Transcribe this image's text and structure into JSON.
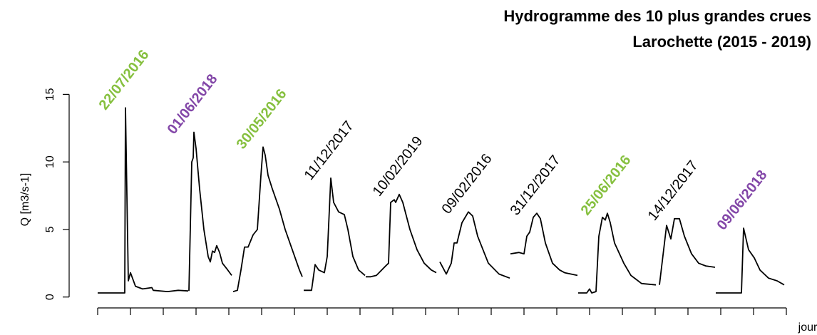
{
  "chart_data": {
    "type": "line",
    "title": "Hydrogramme des 10 plus grandes crues",
    "subtitle": "Larochette (2015 - 2019)",
    "y_label": "Q [m3/s-1]",
    "x_label": "jour",
    "line_color": "#000000",
    "ylim": [
      -0.7,
      17.5
    ],
    "yticks": [
      0,
      5,
      10,
      15
    ],
    "xlim": [
      -40,
      1006
    ],
    "xticks": [
      0,
      46,
      92,
      138,
      184,
      230,
      276,
      322,
      368,
      414,
      460,
      506,
      552,
      598,
      644,
      690,
      736,
      782,
      828,
      874,
      920,
      966
    ],
    "events": [
      {
        "label": "22/07/2016",
        "color": "#86c03f",
        "weight": "bold",
        "x": [
          0,
          38,
          39,
          43,
          46,
          53,
          63,
          76,
          78,
          98,
          113,
          127
        ],
        "y": [
          0.3,
          0.3,
          14,
          1.2,
          1.8,
          0.8,
          0.6,
          0.7,
          0.5,
          0.4,
          0.5,
          0.45
        ]
      },
      {
        "label": "01/06/2018",
        "color": "#8347a8",
        "weight": "bold",
        "x": [
          128,
          132,
          134,
          135,
          138,
          143,
          149,
          155,
          158,
          161,
          164,
          167,
          171,
          175,
          181,
          188
        ],
        "y": [
          0.45,
          10,
          10.3,
          12.2,
          11,
          8,
          5,
          3,
          2.6,
          3.4,
          3.3,
          3.8,
          3.3,
          2.5,
          2.1,
          1.6
        ]
      },
      {
        "label": "30/05/2016",
        "color": "#86c03f",
        "weight": "bold",
        "x": [
          190,
          196,
          201,
          206,
          211,
          218,
          224,
          229,
          232,
          235,
          239,
          245,
          255,
          263,
          273,
          283,
          287
        ],
        "y": [
          0.4,
          0.5,
          2,
          3.7,
          3.7,
          4.6,
          5,
          9,
          11.1,
          10.5,
          9,
          8,
          6.5,
          5,
          3.5,
          2,
          1.5
        ]
      },
      {
        "label": "11/12/2017",
        "color": "#000000",
        "weight": "normal",
        "x": [
          289,
          300,
          305,
          310,
          318,
          322,
          327,
          331,
          338,
          346,
          351,
          358,
          366,
          375
        ],
        "y": [
          0.5,
          0.5,
          2.4,
          2,
          1.8,
          3,
          8.8,
          7,
          6.3,
          6.1,
          5,
          3,
          2,
          1.6
        ]
      },
      {
        "label": "10/02/2019",
        "color": "#000000",
        "weight": "normal",
        "x": [
          376,
          383,
          391,
          404,
          408,
          411,
          416,
          418,
          423,
          428,
          438,
          448,
          458,
          468,
          475
        ],
        "y": [
          1.5,
          1.5,
          1.6,
          2.3,
          2.5,
          7,
          7.2,
          7,
          7.6,
          7,
          5,
          3.5,
          2.5,
          2,
          1.8
        ]
      },
      {
        "label": "09/02/2016",
        "color": "#000000",
        "weight": "normal",
        "x": [
          480,
          489,
          496,
          500,
          504,
          511,
          520,
          526,
          533,
          548,
          563,
          578
        ],
        "y": [
          2.6,
          1.7,
          2.5,
          4,
          4,
          5.5,
          6.3,
          6,
          4.5,
          2.5,
          1.7,
          1.4
        ]
      },
      {
        "label": "31/12/2017",
        "color": "#000000",
        "weight": "normal",
        "x": [
          579,
          591,
          598,
          602,
          606,
          611,
          616,
          621,
          628,
          638,
          648,
          655,
          673
        ],
        "y": [
          3.2,
          3.3,
          3.2,
          4.5,
          4.8,
          5.9,
          6.2,
          5.8,
          4,
          2.5,
          2,
          1.8,
          1.6
        ]
      },
      {
        "label": "25/06/2016",
        "color": "#86c03f",
        "weight": "bold",
        "x": [
          674,
          686,
          690,
          693,
          699,
          703,
          708,
          712,
          715,
          719,
          725,
          738,
          748,
          763,
          783
        ],
        "y": [
          0.3,
          0.3,
          0.6,
          0.3,
          0.4,
          4.5,
          5.9,
          5.7,
          6.2,
          5.5,
          4,
          2.5,
          1.6,
          1.0,
          0.9
        ]
      },
      {
        "label": "14/12/2017",
        "color": "#000000",
        "weight": "normal",
        "x": [
          788,
          798,
          804,
          809,
          816,
          823,
          833,
          843,
          853,
          866
        ],
        "y": [
          0.9,
          5.3,
          4.3,
          5.8,
          5.8,
          4.5,
          3.2,
          2.5,
          2.3,
          2.2
        ]
      },
      {
        "label": "09/06/2018",
        "color": "#8347a8",
        "weight": "bold",
        "x": [
          867,
          903,
          906,
          913,
          921,
          929,
          941,
          953,
          963
        ],
        "y": [
          0.3,
          0.3,
          5.1,
          3.5,
          2.9,
          2,
          1.4,
          1.2,
          0.9
        ]
      }
    ]
  }
}
